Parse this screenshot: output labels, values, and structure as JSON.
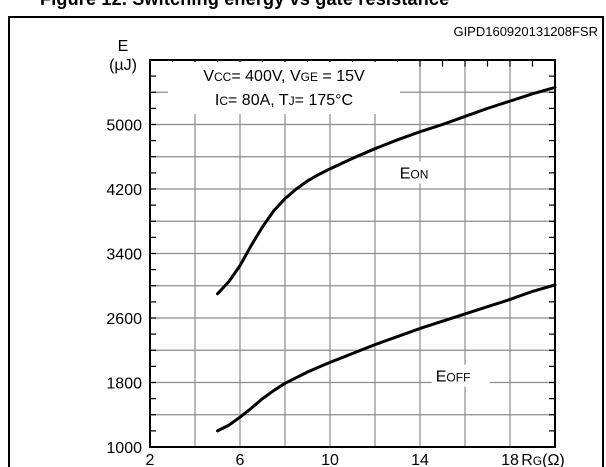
{
  "page": {
    "title": "Figure 12. Switching energy vs gate resistance",
    "figure_code": "GIPD160920131208FSR"
  },
  "chart_data": {
    "type": "line",
    "title": "",
    "ylabel_main": "E",
    "ylabel_unit": "(µJ)",
    "xlabel_main": "R",
    "xlabel_sub": "G",
    "xlabel_unit": "(Ω)",
    "xlim": [
      2,
      20
    ],
    "ylim": [
      1000,
      5800
    ],
    "xticks": [
      2,
      6,
      10,
      14,
      18
    ],
    "yticks": [
      1000,
      1800,
      2600,
      3400,
      4200,
      5000
    ],
    "grid": true,
    "conditions": [
      {
        "parts": [
          {
            "t": "V",
            "s": false
          },
          {
            "t": "CC",
            "s": true
          },
          {
            "t": "= 400V, V",
            "s": false
          },
          {
            "t": "GE",
            "s": true
          },
          {
            "t": " = 15V",
            "s": false
          }
        ]
      },
      {
        "parts": [
          {
            "t": "I",
            "s": false
          },
          {
            "t": "C",
            "s": true
          },
          {
            "t": "= 80A, T",
            "s": false
          },
          {
            "t": "J",
            "s": true
          },
          {
            "t": "= 175°C",
            "s": false
          }
        ]
      }
    ],
    "series": [
      {
        "name": "EON",
        "label_main": "E",
        "label_sub": "ON",
        "x": [
          5,
          5.5,
          6,
          6.5,
          7,
          7.5,
          8,
          8.5,
          9,
          9.5,
          10,
          11,
          12,
          13,
          14,
          15,
          16,
          17,
          18,
          19,
          20
        ],
        "y": [
          2900,
          3050,
          3250,
          3500,
          3730,
          3930,
          4080,
          4200,
          4300,
          4380,
          4450,
          4580,
          4700,
          4810,
          4910,
          5000,
          5100,
          5200,
          5290,
          5380,
          5460
        ]
      },
      {
        "name": "EOFF",
        "label_main": "E",
        "label_sub": "OFF",
        "x": [
          5,
          5.5,
          6,
          6.5,
          7,
          7.5,
          8,
          8.5,
          9,
          9.5,
          10,
          11,
          12,
          13,
          14,
          15,
          16,
          17,
          18,
          19,
          20
        ],
        "y": [
          1200,
          1270,
          1370,
          1480,
          1600,
          1700,
          1790,
          1860,
          1930,
          1990,
          2050,
          2160,
          2270,
          2370,
          2470,
          2560,
          2650,
          2740,
          2830,
          2930,
          3010
        ]
      }
    ]
  }
}
